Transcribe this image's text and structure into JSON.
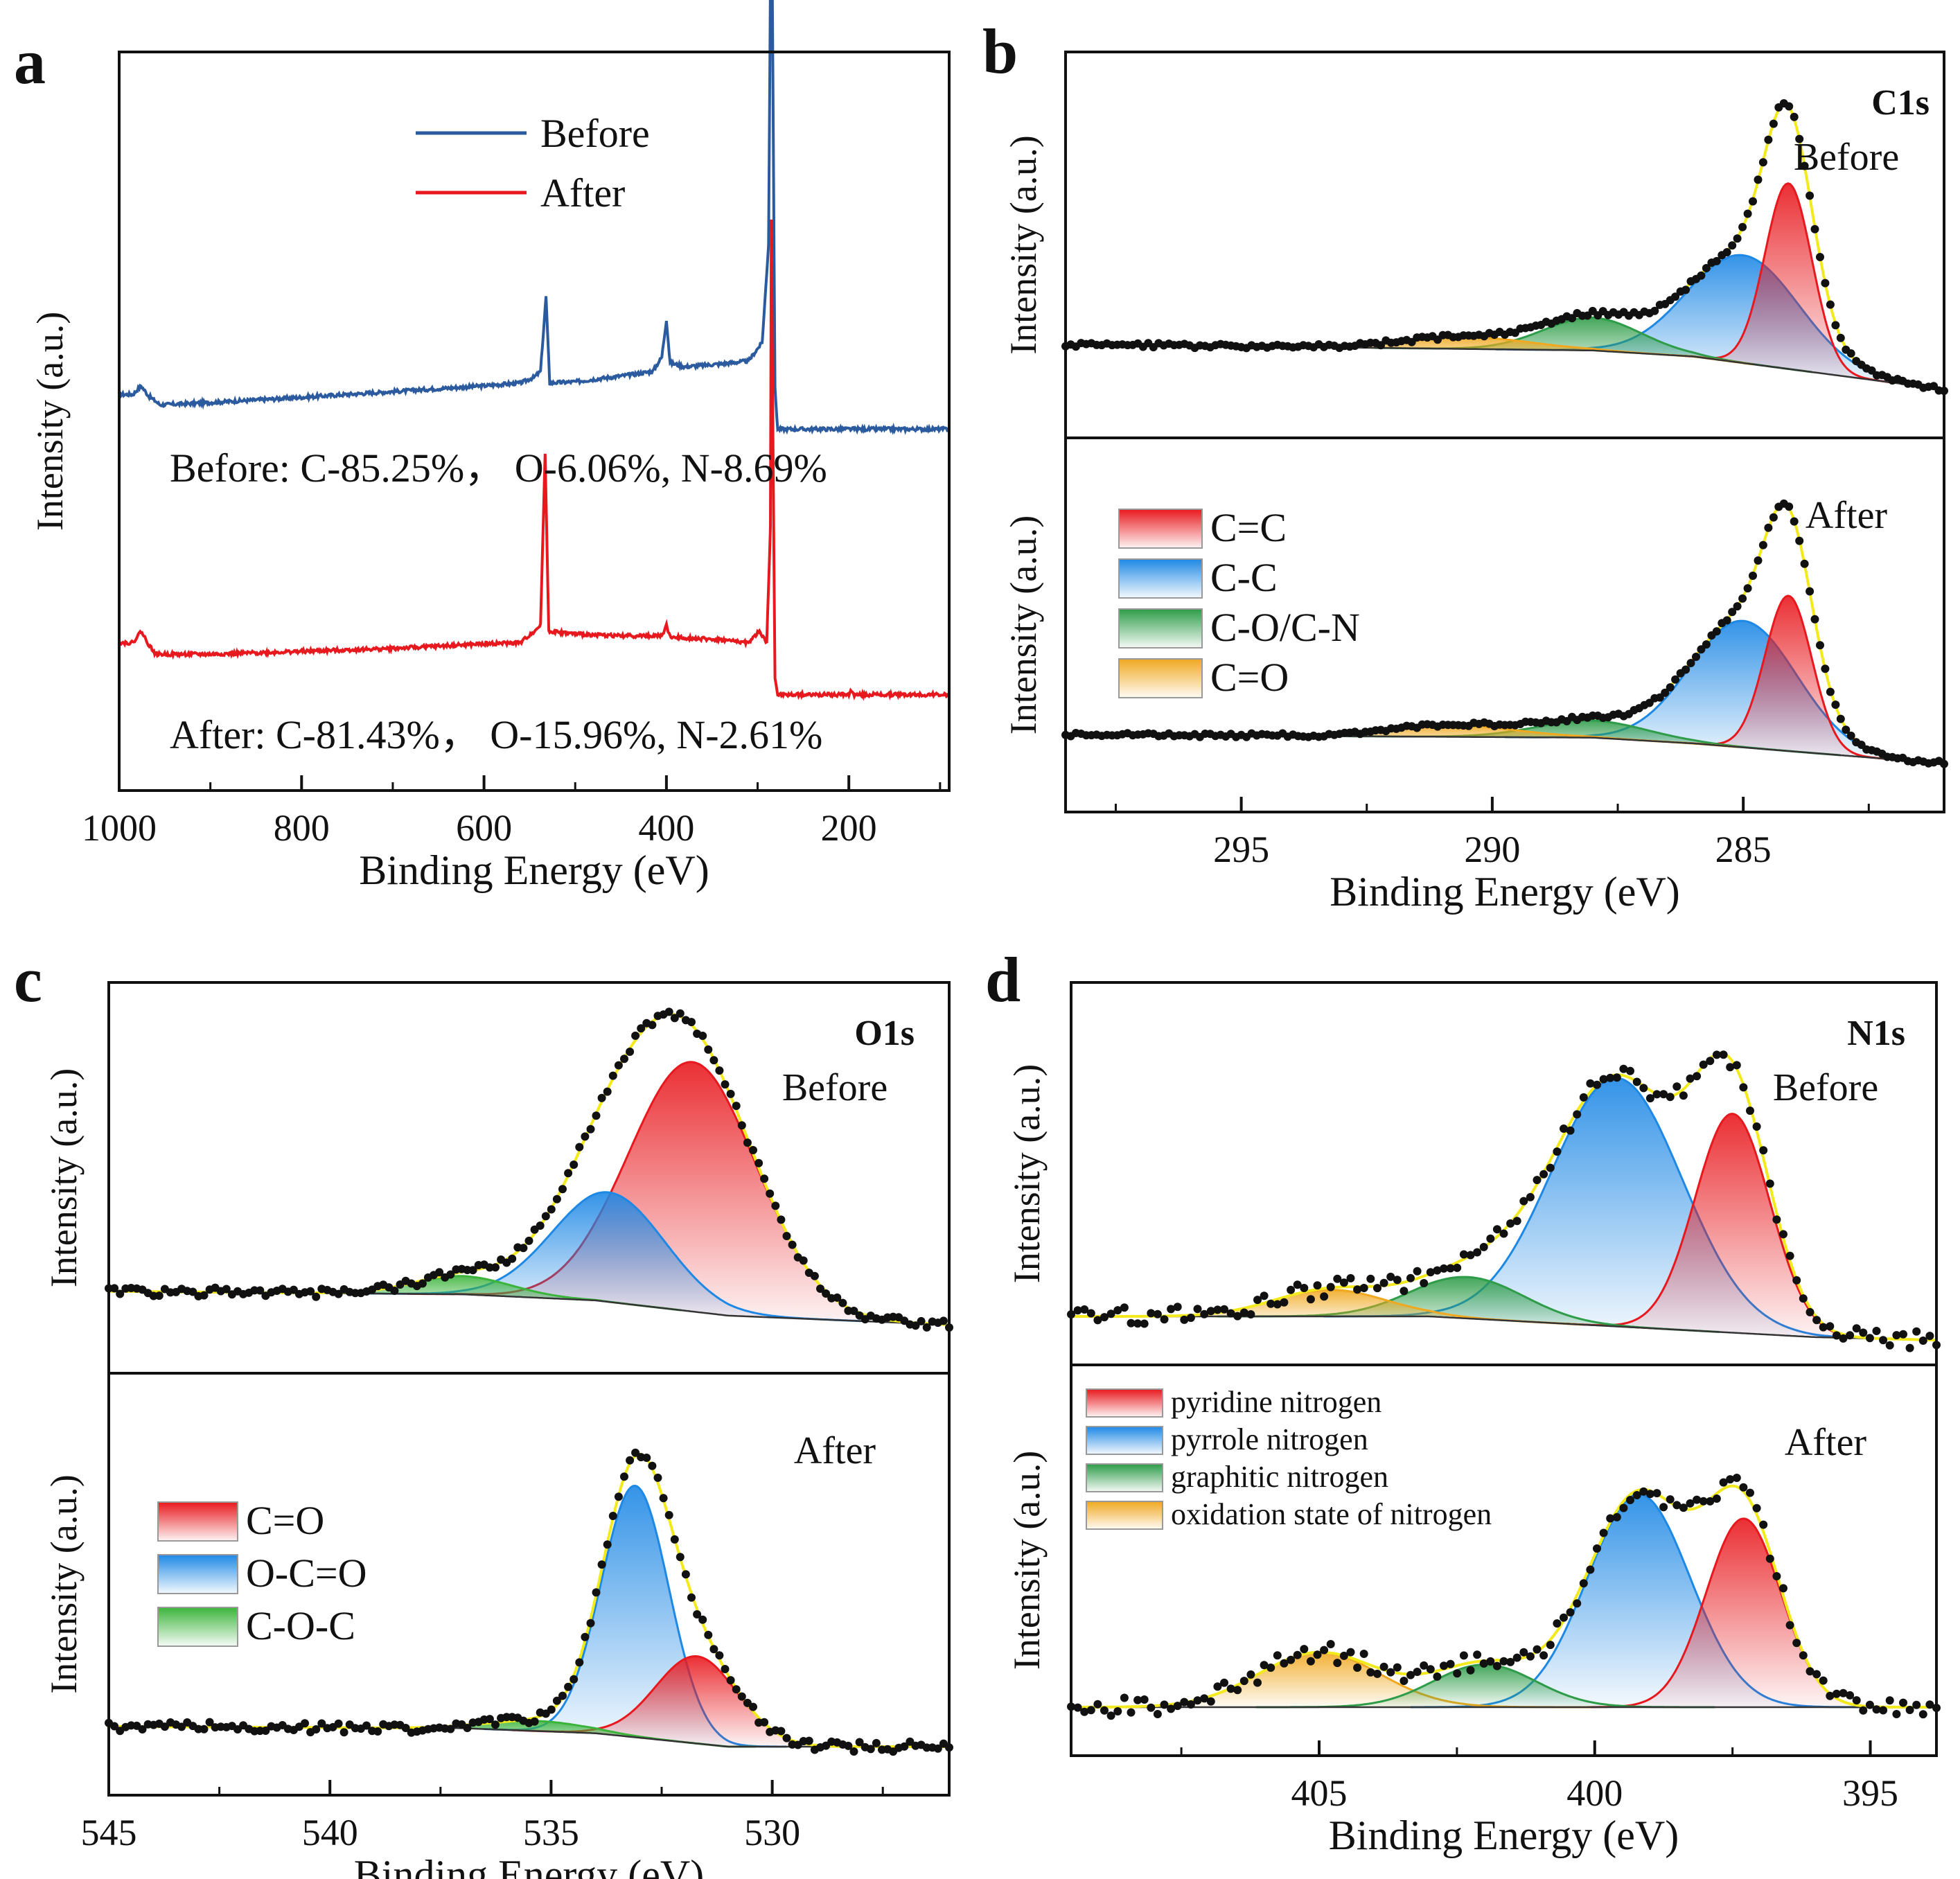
{
  "chart_data": [
    {
      "panel": "a",
      "type": "line",
      "xlabel": "Binding Energy (eV)",
      "ylabel": "Intensity (a.u.)",
      "xlim": [
        1000,
        90
      ],
      "xticks": [
        1000,
        800,
        600,
        400,
        200
      ],
      "xtick_labels": [
        "1000",
        "800",
        "600",
        "400",
        "200"
      ],
      "legend": [
        {
          "name": "Before",
          "color": "#2b5a9e"
        },
        {
          "name": "After",
          "color": "#e8191e"
        }
      ],
      "annotations": [
        "Before: C-85.25%， O-6.06%, N-8.69%",
        "After: C-81.43%， O-15.96%, N-2.61%"
      ],
      "series": [
        {
          "name": "Before",
          "color": "#2b5a9e",
          "offset": 0.47,
          "points": [
            [
              1000,
              0.06
            ],
            [
              985,
              0.06
            ],
            [
              976,
              0.075
            ],
            [
              968,
              0.058
            ],
            [
              955,
              0.042
            ],
            [
              900,
              0.046
            ],
            [
              800,
              0.055
            ],
            [
              700,
              0.065
            ],
            [
              600,
              0.075
            ],
            [
              560,
              0.08
            ],
            [
              545,
              0.09
            ],
            [
              538,
              0.1
            ],
            [
              532,
              0.23
            ],
            [
              528,
              0.08
            ],
            [
              500,
              0.082
            ],
            [
              450,
              0.092
            ],
            [
              415,
              0.1
            ],
            [
              405,
              0.125
            ],
            [
              400,
              0.19
            ],
            [
              396,
              0.115
            ],
            [
              380,
              0.108
            ],
            [
              340,
              0.113
            ],
            [
              310,
              0.118
            ],
            [
              295,
              0.15
            ],
            [
              288,
              0.32
            ],
            [
              285,
              1.0
            ],
            [
              283,
              0.56
            ],
            [
              281,
              0.07
            ],
            [
              278,
              0.0
            ],
            [
              200,
              0.0
            ],
            [
              90,
              0.0
            ]
          ]
        },
        {
          "name": "After",
          "color": "#e8191e",
          "offset": 0.0,
          "points": [
            [
              1000,
              0.1
            ],
            [
              985,
              0.1
            ],
            [
              976,
              0.12
            ],
            [
              968,
              0.098
            ],
            [
              960,
              0.08
            ],
            [
              900,
              0.08
            ],
            [
              800,
              0.085
            ],
            [
              700,
              0.09
            ],
            [
              600,
              0.098
            ],
            [
              560,
              0.1
            ],
            [
              545,
              0.12
            ],
            [
              538,
              0.13
            ],
            [
              533,
              0.43
            ],
            [
              529,
              0.12
            ],
            [
              500,
              0.115
            ],
            [
              450,
              0.112
            ],
            [
              405,
              0.112
            ],
            [
              400,
              0.13
            ],
            [
              396,
              0.11
            ],
            [
              340,
              0.105
            ],
            [
              310,
              0.1
            ],
            [
              298,
              0.12
            ],
            [
              290,
              0.1
            ],
            [
              286,
              0.3
            ],
            [
              285,
              0.83
            ],
            [
              283,
              0.42
            ],
            [
              281,
              0.04
            ],
            [
              278,
              0.01
            ],
            [
              200,
              0.01
            ],
            [
              198,
              0.02
            ],
            [
              195,
              0.01
            ],
            [
              90,
              0.01
            ]
          ]
        }
      ]
    },
    {
      "panel": "b",
      "type": "area",
      "core_level": "C1s",
      "xlabel": "Binding Energy (eV)",
      "ylabel": "Intensity (a.u.)",
      "xlim": [
        298.5,
        281.0
      ],
      "xticks": [
        295,
        290,
        285
      ],
      "xtick_labels": [
        "295",
        "290",
        "285"
      ],
      "legend": [
        {
          "name": "C=C",
          "color": "#e8191e"
        },
        {
          "name": "C-C",
          "color": "#1e88e5"
        },
        {
          "name": "C-O/C-N",
          "color": "#2e9c48"
        },
        {
          "name": "C=O",
          "color": "#f0a820"
        }
      ],
      "subplots": [
        {
          "label": "Before",
          "baseline": [
            [
              298.0,
              0.15
            ],
            [
              288.0,
              0.13
            ],
            [
              286.0,
              0.11
            ],
            [
              281.0,
              0.0
            ]
          ],
          "components": [
            {
              "name": "C=C",
              "center": 284.1,
              "fwhm": 1.1,
              "height": 0.62
            },
            {
              "name": "C-C",
              "center": 285.0,
              "fwhm": 2.6,
              "height": 0.36
            },
            {
              "name": "C-O/C-N",
              "center": 288.0,
              "fwhm": 2.3,
              "height": 0.11
            },
            {
              "name": "C=O",
              "center": 290.5,
              "fwhm": 3.0,
              "height": 0.04
            }
          ]
        },
        {
          "label": "After",
          "baseline": [
            [
              298.0,
              0.1
            ],
            [
              288.0,
              0.09
            ],
            [
              286.0,
              0.07
            ],
            [
              281.0,
              0.0
            ]
          ],
          "components": [
            {
              "name": "C=C",
              "center": 284.1,
              "fwhm": 1.1,
              "height": 0.54
            },
            {
              "name": "C-C",
              "center": 285.0,
              "fwhm": 2.5,
              "height": 0.44
            },
            {
              "name": "C-O/C-N",
              "center": 288.0,
              "fwhm": 2.6,
              "height": 0.06
            },
            {
              "name": "C=O",
              "center": 290.8,
              "fwhm": 3.0,
              "height": 0.04
            }
          ]
        }
      ]
    },
    {
      "panel": "c",
      "type": "area",
      "core_level": "O1s",
      "xlabel": "Binding Energy (eV)",
      "ylabel": "Intensity (a.u.)",
      "xlim": [
        545.0,
        526.0
      ],
      "xticks": [
        545,
        540,
        535,
        530
      ],
      "xtick_labels": [
        "545",
        "540",
        "535",
        "530"
      ],
      "legend": [
        {
          "name": "C=O",
          "color": "#e8191e"
        },
        {
          "name": "O-C=O",
          "color": "#1e88e5"
        },
        {
          "name": "C-O-C",
          "color": "#3cb43c"
        }
      ],
      "subplots": [
        {
          "label": "Before",
          "baseline": [
            [
              545.0,
              0.11
            ],
            [
              537.0,
              0.1
            ],
            [
              534.0,
              0.08
            ],
            [
              531.0,
              0.03
            ],
            [
              526.0,
              0.0
            ]
          ],
          "components": [
            {
              "name": "C=O",
              "center": 531.8,
              "fwhm": 3.4,
              "height": 0.82
            },
            {
              "name": "O-C=O",
              "center": 533.7,
              "fwhm": 3.0,
              "height": 0.36
            },
            {
              "name": "C-O-C",
              "center": 537.0,
              "fwhm": 2.6,
              "height": 0.06
            }
          ]
        },
        {
          "label": "After",
          "baseline": [
            [
              545.0,
              0.06
            ],
            [
              537.0,
              0.055
            ],
            [
              534.0,
              0.04
            ],
            [
              531.0,
              0.0
            ],
            [
              526.0,
              0.0
            ]
          ],
          "components": [
            {
              "name": "C=O",
              "center": 531.7,
              "fwhm": 2.2,
              "height": 0.26
            },
            {
              "name": "O-C=O",
              "center": 533.1,
              "fwhm": 1.8,
              "height": 0.75
            },
            {
              "name": "C-O-C",
              "center": 535.3,
              "fwhm": 2.6,
              "height": 0.03
            }
          ]
        }
      ]
    },
    {
      "panel": "d",
      "type": "area",
      "core_level": "N1s",
      "xlabel": "Binding Energy (eV)",
      "ylabel": "Intensity (a.u.)",
      "xlim": [
        409.5,
        393.8
      ],
      "xticks": [
        405,
        400,
        395
      ],
      "xtick_labels": [
        "405",
        "400",
        "395"
      ],
      "legend": [
        {
          "name": "pyridine nitrogen",
          "color": "#e8191e"
        },
        {
          "name": "pyrrole nitrogen",
          "color": "#1e88e5"
        },
        {
          "name": "graphitic nitrogen",
          "color": "#2e9c48"
        },
        {
          "name": "oxidation state of nitrogen",
          "color": "#f0a820"
        }
      ],
      "subplots": [
        {
          "label": "Before",
          "baseline": [
            [
              409.5,
              0.0
            ],
            [
              403.0,
              0.0
            ],
            [
              400.0,
              -0.03
            ],
            [
              396.0,
              -0.07
            ],
            [
              393.8,
              -0.08
            ]
          ],
          "components": [
            {
              "name": "pyridine nitrogen",
              "center": 397.5,
              "fwhm": 1.6,
              "height": 0.74
            },
            {
              "name": "pyrrole nitrogen",
              "center": 399.6,
              "fwhm": 2.8,
              "height": 0.84
            },
            {
              "name": "graphitic nitrogen",
              "center": 402.3,
              "fwhm": 2.4,
              "height": 0.14
            },
            {
              "name": "oxidation state of nitrogen",
              "center": 404.8,
              "fwhm": 2.4,
              "height": 0.09
            }
          ]
        },
        {
          "label": "After",
          "baseline": [
            [
              409.5,
              0.0
            ],
            [
              393.8,
              0.0
            ]
          ],
          "components": [
            {
              "name": "pyridine nitrogen",
              "center": 397.3,
              "fwhm": 1.6,
              "height": 0.62
            },
            {
              "name": "pyrrole nitrogen",
              "center": 399.2,
              "fwhm": 2.2,
              "height": 0.7
            },
            {
              "name": "graphitic nitrogen",
              "center": 402.0,
              "fwhm": 2.2,
              "height": 0.14
            },
            {
              "name": "oxidation state of nitrogen",
              "center": 405.0,
              "fwhm": 2.6,
              "height": 0.18
            }
          ]
        }
      ]
    }
  ]
}
